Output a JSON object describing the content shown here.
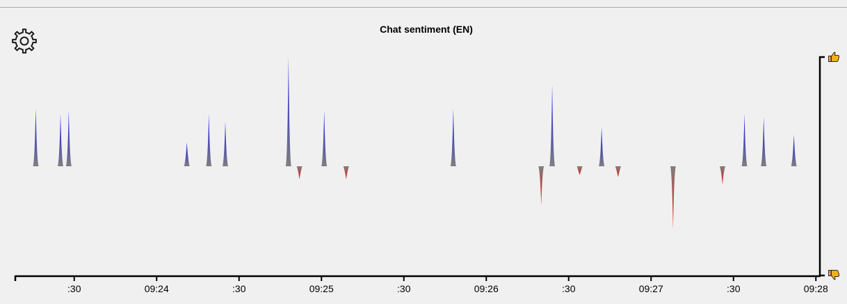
{
  "settings": {
    "icon": "gear-icon"
  },
  "chart_data": {
    "type": "bar",
    "title": "Chat sentiment (EN)",
    "xlabel": "",
    "ylabel": "",
    "ylim": [
      -1,
      1
    ],
    "xlim": [
      "09:23:05",
      "09:28:05"
    ],
    "x_ticks": [
      {
        "t": "09:23:30",
        "label": ":30"
      },
      {
        "t": "09:24:00",
        "label": "09:24"
      },
      {
        "t": "09:24:30",
        "label": ":30"
      },
      {
        "t": "09:25:00",
        "label": "09:25"
      },
      {
        "t": "09:25:30",
        "label": ":30"
      },
      {
        "t": "09:26:00",
        "label": "09:26"
      },
      {
        "t": "09:26:30",
        "label": ":30"
      },
      {
        "t": "09:27:00",
        "label": "09:27"
      },
      {
        "t": "09:27:30",
        "label": ":30"
      },
      {
        "t": "09:28:00",
        "label": "09:28"
      }
    ],
    "y_axis": {
      "top_icon": "thumbs-up-icon",
      "bottom_icon": "thumbs-down-icon"
    },
    "colors": {
      "positive": "#1010ee",
      "negative": "#ee1010",
      "base": "#808080"
    },
    "points": [
      {
        "t": "09:23:16",
        "v": 0.53
      },
      {
        "t": "09:23:25",
        "v": 0.48
      },
      {
        "t": "09:23:28",
        "v": 0.51
      },
      {
        "t": "09:24:11",
        "v": 0.22
      },
      {
        "t": "09:24:19",
        "v": 0.48
      },
      {
        "t": "09:24:25",
        "v": 0.41
      },
      {
        "t": "09:24:48",
        "v": 1.0
      },
      {
        "t": "09:24:52",
        "v": -0.12
      },
      {
        "t": "09:25:01",
        "v": 0.51
      },
      {
        "t": "09:25:09",
        "v": -0.12
      },
      {
        "t": "09:25:48",
        "v": 0.53
      },
      {
        "t": "09:26:20",
        "v": -0.36
      },
      {
        "t": "09:26:24",
        "v": 0.75
      },
      {
        "t": "09:26:34",
        "v": -0.08
      },
      {
        "t": "09:26:42",
        "v": 0.36
      },
      {
        "t": "09:26:48",
        "v": -0.1
      },
      {
        "t": "09:27:08",
        "v": -0.58
      },
      {
        "t": "09:27:26",
        "v": -0.17
      },
      {
        "t": "09:27:34",
        "v": 0.48
      },
      {
        "t": "09:27:41",
        "v": 0.45
      },
      {
        "t": "09:27:52",
        "v": 0.29
      }
    ]
  }
}
